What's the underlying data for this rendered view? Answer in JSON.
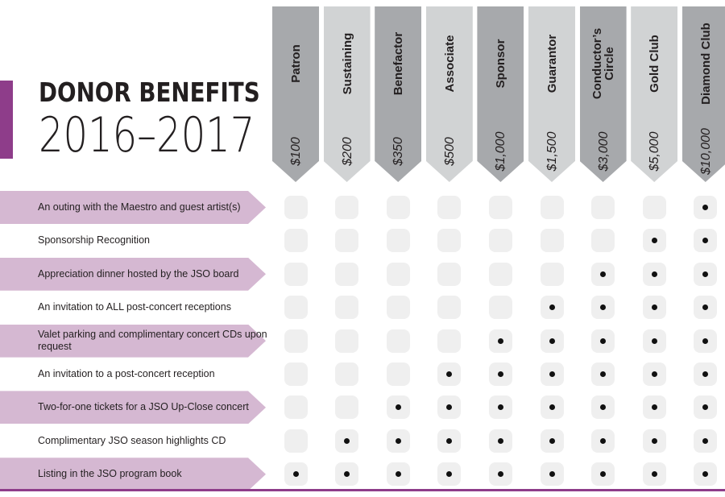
{
  "title": {
    "main": "DONOR BENEFITS",
    "year": "2016–2017"
  },
  "accent_color": "#8e3d8a",
  "row_highlight_color": "#d5b8d2",
  "tiers": [
    {
      "name": "Patron",
      "price": "$100",
      "tone": "dark"
    },
    {
      "name": "Sustaining",
      "price": "$200",
      "tone": "light"
    },
    {
      "name": "Benefactor",
      "price": "$350",
      "tone": "dark"
    },
    {
      "name": "Associate",
      "price": "$500",
      "tone": "light"
    },
    {
      "name": "Sponsor",
      "price": "$1,000",
      "tone": "dark"
    },
    {
      "name": "Guarantor",
      "price": "$1,500",
      "tone": "light"
    },
    {
      "name": "Conductor’s Circle",
      "price": "$3,000",
      "tone": "dark"
    },
    {
      "name": "Gold Club",
      "price": "$5,000",
      "tone": "light"
    },
    {
      "name": "Diamond Club",
      "price": "$10,000",
      "tone": "dark"
    }
  ],
  "benefits": [
    {
      "label": "An outing with the Maestro and guest artist(s)",
      "shaded": true,
      "included": [
        false,
        false,
        false,
        false,
        false,
        false,
        false,
        false,
        true
      ]
    },
    {
      "label": "Sponsorship Recognition",
      "shaded": false,
      "included": [
        false,
        false,
        false,
        false,
        false,
        false,
        false,
        true,
        true
      ]
    },
    {
      "label": "Appreciation dinner hosted by the JSO board",
      "shaded": true,
      "included": [
        false,
        false,
        false,
        false,
        false,
        false,
        true,
        true,
        true
      ]
    },
    {
      "label": "An invitation to ALL post-concert receptions",
      "shaded": false,
      "included": [
        false,
        false,
        false,
        false,
        false,
        true,
        true,
        true,
        true
      ]
    },
    {
      "label": "Valet parking and complimentary concert CDs upon request",
      "shaded": true,
      "included": [
        false,
        false,
        false,
        false,
        true,
        true,
        true,
        true,
        true
      ]
    },
    {
      "label": "An invitation to a post-concert reception",
      "shaded": false,
      "included": [
        false,
        false,
        false,
        true,
        true,
        true,
        true,
        true,
        true
      ]
    },
    {
      "label": "Two-for-one tickets for a JSO Up-Close concert",
      "shaded": true,
      "included": [
        false,
        false,
        true,
        true,
        true,
        true,
        true,
        true,
        true
      ]
    },
    {
      "label": "Complimentary JSO season highlights CD",
      "shaded": false,
      "included": [
        false,
        true,
        true,
        true,
        true,
        true,
        true,
        true,
        true
      ]
    },
    {
      "label": "Listing in the JSO program book",
      "shaded": true,
      "included": [
        true,
        true,
        true,
        true,
        true,
        true,
        true,
        true,
        true
      ]
    }
  ]
}
